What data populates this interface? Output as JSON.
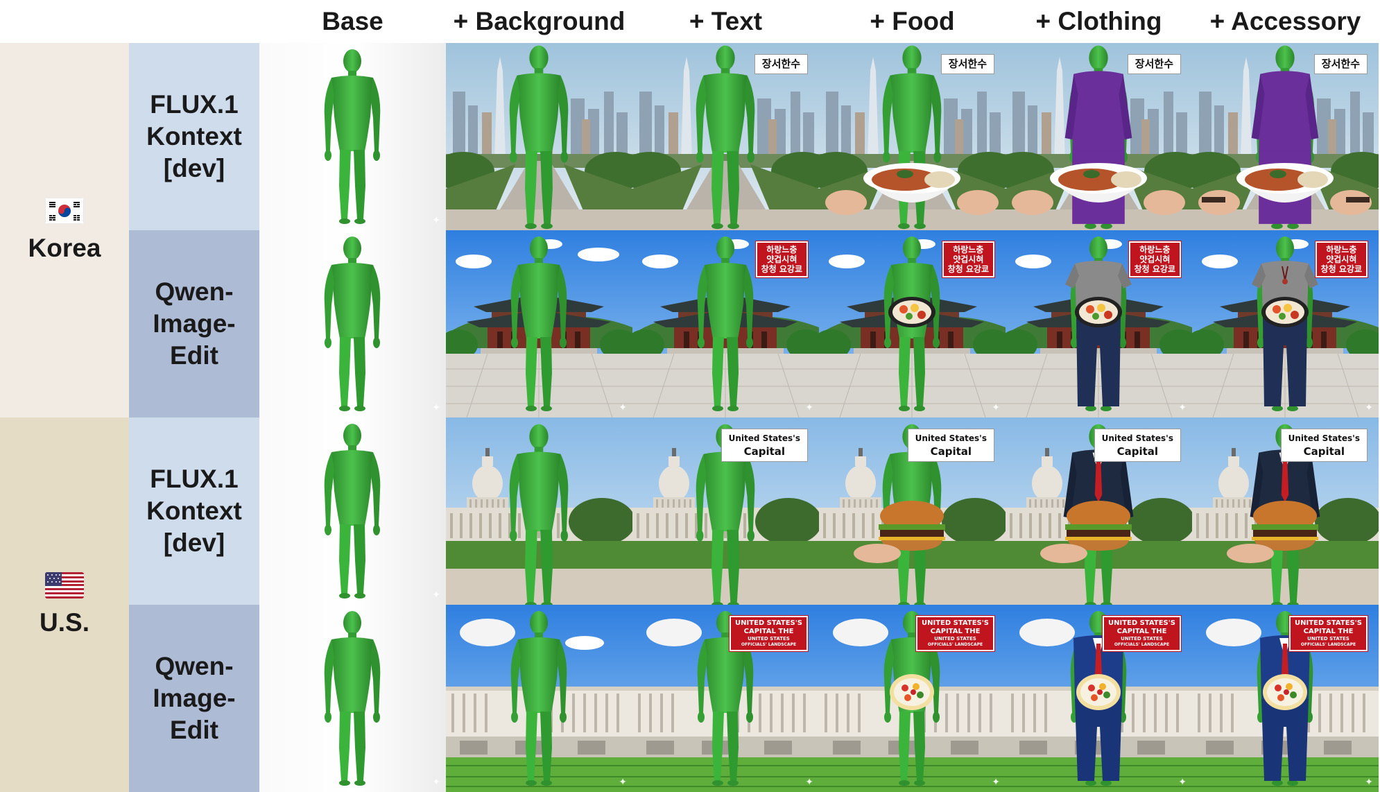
{
  "columns": [
    "Base",
    "+ Background",
    "+ Text",
    "+ Food",
    "+ Clothing",
    "+ Accessory"
  ],
  "countries": [
    {
      "name": "Korea",
      "flag_icon": "south-korea-flag-icon",
      "panel_color": "#f1ebe3"
    },
    {
      "name": "U.S.",
      "flag_icon": "united-states-flag-icon",
      "panel_color": "#e5dcc6"
    }
  ],
  "models": [
    {
      "lines": [
        "FLUX.1",
        "Kontext",
        "[dev]"
      ],
      "panel_color": "#cfdcec"
    },
    {
      "lines": [
        "Qwen-",
        "Image-",
        "Edit"
      ],
      "panel_color": "#aebbd5"
    }
  ],
  "signs": {
    "korea_flux": "장서한수",
    "korea_qwen_line1": "하랑느충",
    "korea_qwen_line2": "얏겁시혀",
    "korea_qwen_line3": "창청 요강쿄",
    "us_flux_line1": "United States's",
    "us_flux_line2": "Capital",
    "us_qwen_line1": "UNITED STATES'S",
    "us_qwen_line2": "CAPITAL THE",
    "us_qwen_line3": "UNITED STATES",
    "us_qwen_line4": "OFFICIALS' LANDSCAPE"
  },
  "colors": {
    "figure_green": "#3aa83a",
    "sign_red": "#c0151f"
  }
}
